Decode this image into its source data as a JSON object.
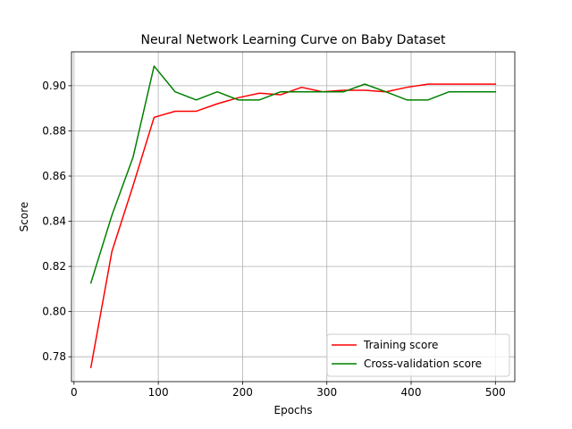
{
  "chart_data": {
    "type": "line",
    "title": "Neural Network Learning Curve on Baby Dataset",
    "xlabel": "Epochs",
    "ylabel": "Score",
    "xlim": [
      -3,
      523
    ],
    "ylim": [
      0.769,
      0.915
    ],
    "xticks": [
      0,
      100,
      200,
      300,
      400,
      500
    ],
    "yticks": [
      0.78,
      0.8,
      0.82,
      0.84,
      0.86,
      0.88,
      0.9
    ],
    "ytick_labels": [
      "0.78",
      "0.80",
      "0.82",
      "0.84",
      "0.86",
      "0.88",
      "0.90"
    ],
    "grid": true,
    "legend_position": "lower right",
    "series": [
      {
        "name": "Training score",
        "color": "#ff0000",
        "x": [
          20,
          45,
          70,
          95,
          120,
          145,
          170,
          195,
          220,
          245,
          270,
          295,
          320,
          345,
          370,
          395,
          420,
          445,
          470,
          500
        ],
        "y": [
          0.7753,
          0.8267,
          0.8557,
          0.886,
          0.8887,
          0.8887,
          0.892,
          0.8947,
          0.8967,
          0.896,
          0.8993,
          0.8973,
          0.898,
          0.898,
          0.8973,
          0.8993,
          0.9007,
          0.9007,
          0.9007,
          0.9007
        ]
      },
      {
        "name": "Cross-validation score",
        "color": "#008000",
        "x": [
          20,
          45,
          70,
          95,
          120,
          145,
          170,
          195,
          220,
          245,
          270,
          295,
          320,
          345,
          370,
          395,
          420,
          445,
          470,
          500
        ],
        "y": [
          0.8127,
          0.8427,
          0.8683,
          0.9087,
          0.8973,
          0.8937,
          0.8973,
          0.8937,
          0.8937,
          0.8973,
          0.8973,
          0.8973,
          0.8973,
          0.9007,
          0.8973,
          0.8937,
          0.8937,
          0.8973,
          0.8973,
          0.8973
        ]
      }
    ]
  }
}
